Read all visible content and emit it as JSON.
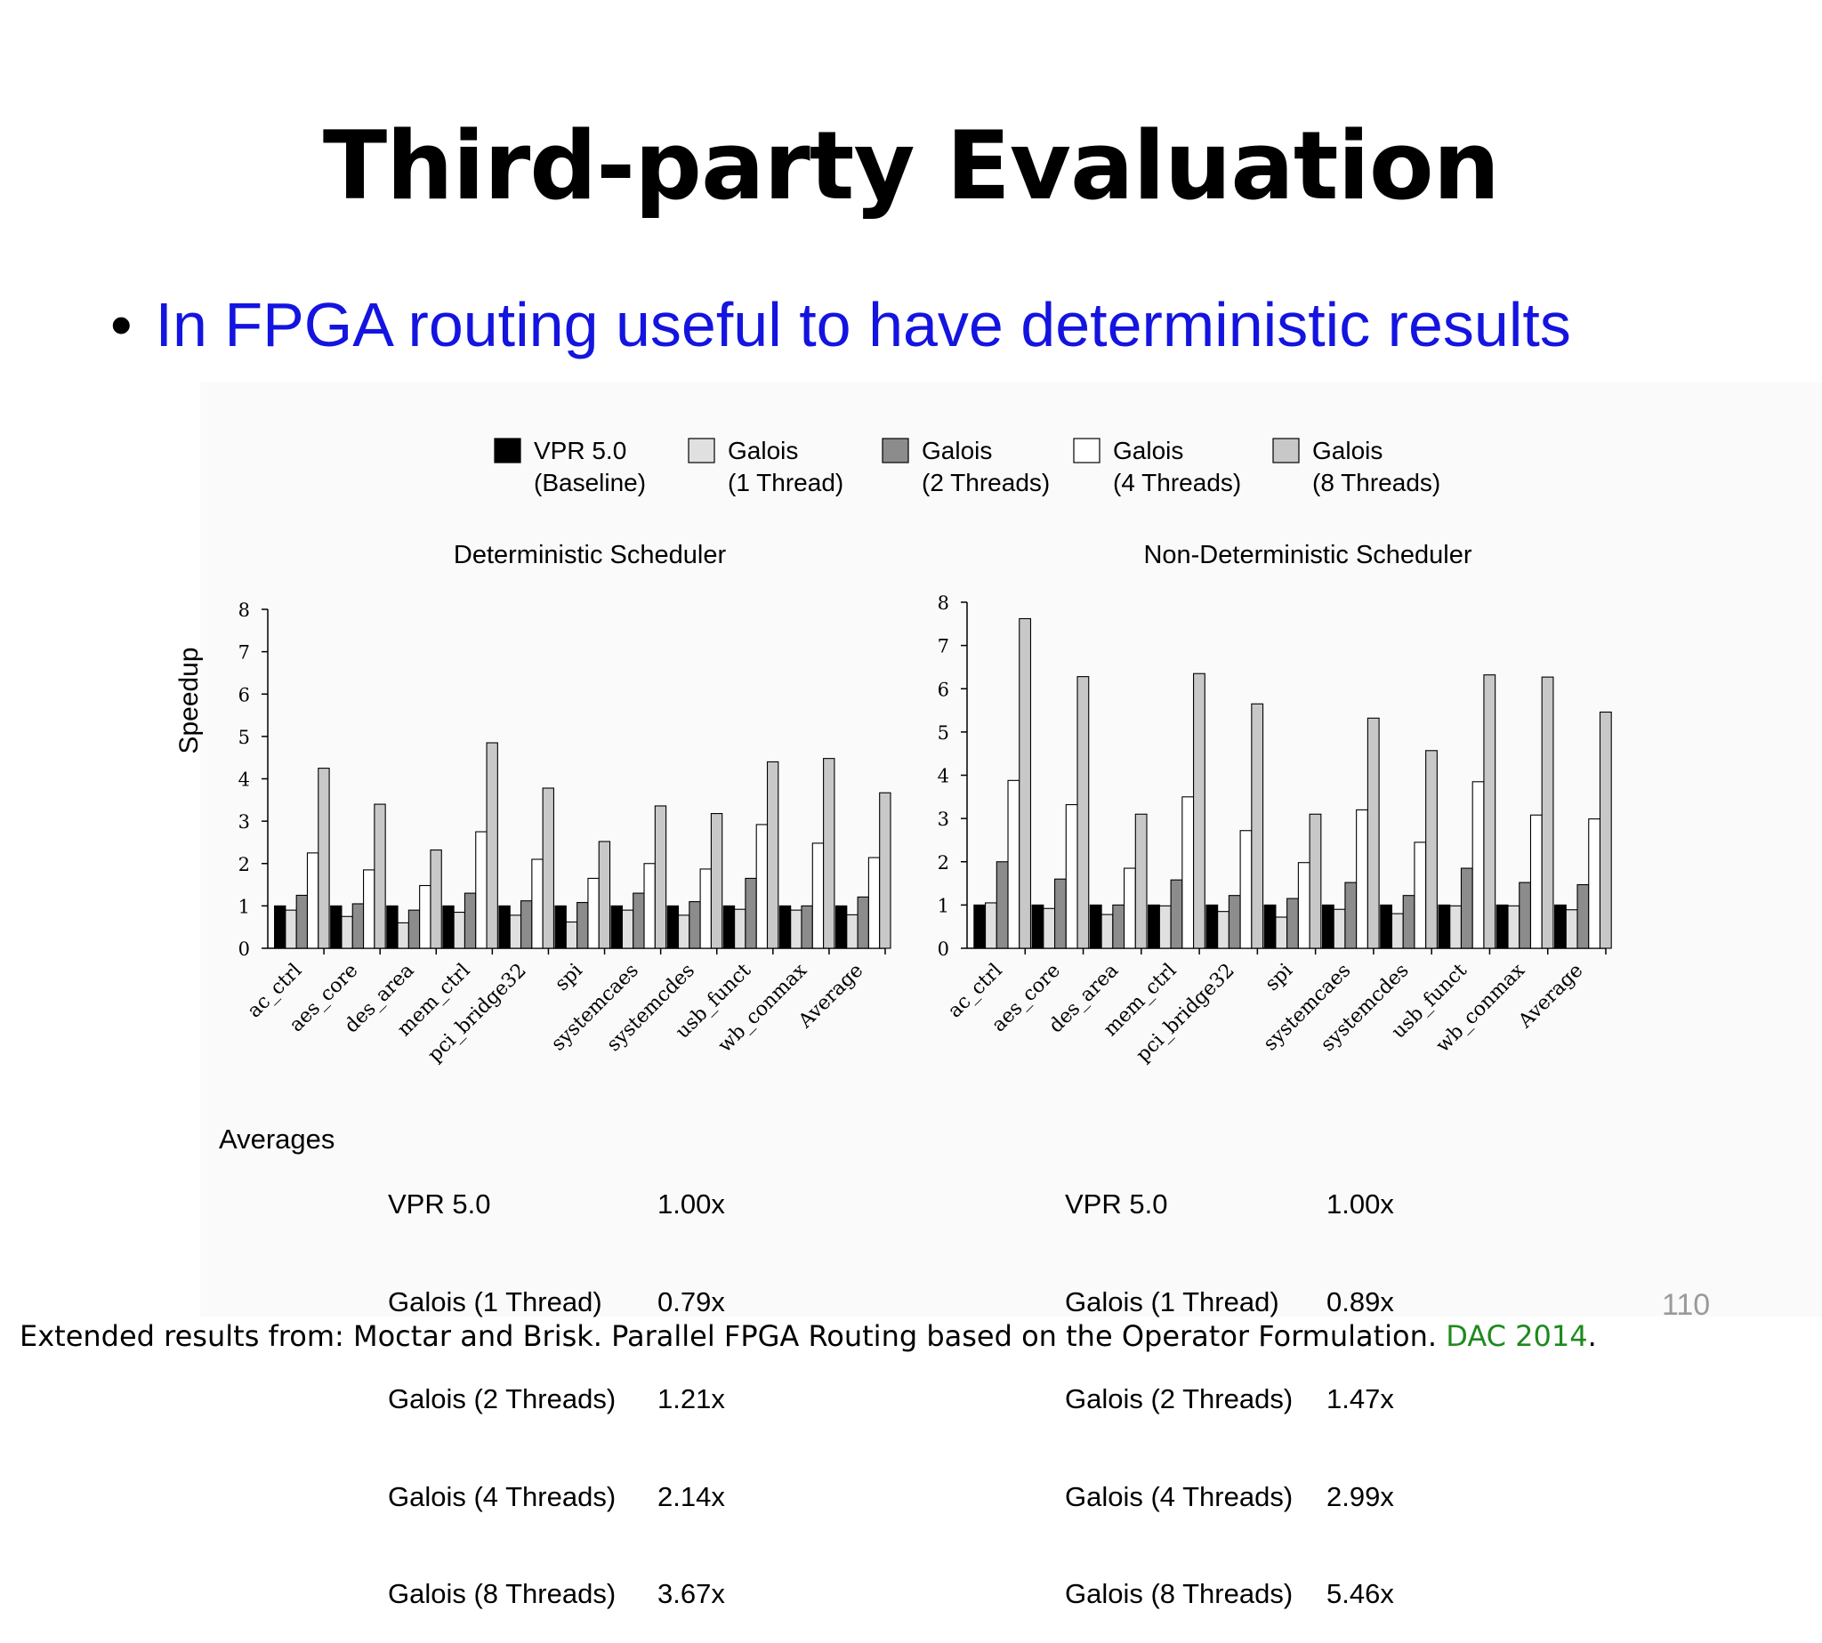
{
  "slide": {
    "title": "Third-party Evaluation",
    "bullet_symbol": "•",
    "bullet_text": "In FPGA routing useful to have deterministic results",
    "page_number": "110",
    "footer_text": "Extended results from: Moctar and Brisk. Parallel FPGA Routing based on the Operator Formulation.",
    "footer_venue": "DAC 2014",
    "footer_end": "."
  },
  "legend": [
    {
      "line1": "VPR 5.0",
      "line2": "(Baseline)",
      "color": "#000000"
    },
    {
      "line1": "Galois",
      "line2": "(1 Thread)",
      "color": "#e0e0e0"
    },
    {
      "line1": "Galois",
      "line2": "(2 Threads)",
      "color": "#8c8c8c"
    },
    {
      "line1": "Galois",
      "line2": "(4 Threads)",
      "color": "#ffffff"
    },
    {
      "line1": "Galois",
      "line2": "(8 Threads)",
      "color": "#c8c8c8"
    }
  ],
  "chart_data": [
    {
      "type": "bar",
      "title": "Deterministic Scheduler",
      "ylabel": "Speedup",
      "ylim": [
        0,
        8
      ],
      "yticks": [
        "0",
        "1",
        "2",
        "3",
        "4",
        "5",
        "6",
        "7",
        "8"
      ],
      "categories": [
        "ac_ctrl",
        "aes_core",
        "des_area",
        "mem_ctrl",
        "pci_bridge32",
        "spi",
        "systemcaes",
        "systemcdes",
        "usb_funct",
        "wb_conmax",
        "Average"
      ],
      "series": [
        {
          "name": "VPR 5.0 (Baseline)",
          "values": [
            1.0,
            1.0,
            1.0,
            1.0,
            1.0,
            1.0,
            1.0,
            1.0,
            1.0,
            1.0,
            1.0
          ]
        },
        {
          "name": "Galois (1 Thread)",
          "values": [
            0.9,
            0.75,
            0.6,
            0.85,
            0.78,
            0.62,
            0.9,
            0.78,
            0.92,
            0.9,
            0.79
          ]
        },
        {
          "name": "Galois (2 Threads)",
          "values": [
            1.25,
            1.05,
            0.9,
            1.3,
            1.12,
            1.08,
            1.3,
            1.1,
            1.65,
            1.0,
            1.21
          ]
        },
        {
          "name": "Galois (4 Threads)",
          "values": [
            2.25,
            1.85,
            1.48,
            2.75,
            2.1,
            1.65,
            2.0,
            1.87,
            2.92,
            2.48,
            2.14
          ]
        },
        {
          "name": "Galois (8 Threads)",
          "values": [
            4.25,
            3.4,
            2.32,
            4.85,
            3.78,
            2.52,
            3.36,
            3.18,
            4.4,
            4.48,
            3.67
          ]
        }
      ],
      "averages": [
        {
          "label": "Averages",
          "name": "VPR 5.0",
          "value": "1.00x"
        },
        {
          "label": "",
          "name": "Galois (1 Thread)",
          "value": "0.79x"
        },
        {
          "label": "",
          "name": "Galois (2 Threads)",
          "value": "1.21x"
        },
        {
          "label": "",
          "name": "Galois (4 Threads)",
          "value": "2.14x"
        },
        {
          "label": "",
          "name": "Galois (8 Threads)",
          "value": "3.67x"
        }
      ]
    },
    {
      "type": "bar",
      "title": "Non-Deterministic Scheduler",
      "ylabel": "",
      "ylim": [
        0,
        8
      ],
      "yticks": [
        "0",
        "1",
        "2",
        "3",
        "4",
        "5",
        "6",
        "7",
        "8"
      ],
      "categories": [
        "ac_ctrl",
        "aes_core",
        "des_area",
        "mem_ctrl",
        "pci_bridge32",
        "spi",
        "systemcaes",
        "systemcdes",
        "usb_funct",
        "wb_conmax",
        "Average"
      ],
      "series": [
        {
          "name": "VPR 5.0 (Baseline)",
          "values": [
            1.0,
            1.0,
            1.0,
            1.0,
            1.0,
            1.0,
            1.0,
            1.0,
            1.0,
            1.0,
            1.0
          ]
        },
        {
          "name": "Galois (1 Thread)",
          "values": [
            1.05,
            0.92,
            0.78,
            0.98,
            0.85,
            0.72,
            0.9,
            0.8,
            0.98,
            0.98,
            0.89
          ]
        },
        {
          "name": "Galois (2 Threads)",
          "values": [
            2.0,
            1.6,
            1.0,
            1.58,
            1.22,
            1.15,
            1.52,
            1.22,
            1.85,
            1.52,
            1.47
          ]
        },
        {
          "name": "Galois (4 Threads)",
          "values": [
            3.88,
            3.32,
            1.85,
            3.5,
            2.72,
            1.98,
            3.2,
            2.45,
            3.85,
            3.08,
            2.99
          ]
        },
        {
          "name": "Galois (8 Threads)",
          "values": [
            7.62,
            6.28,
            3.1,
            6.35,
            5.65,
            3.1,
            5.32,
            4.57,
            6.32,
            6.27,
            5.46
          ]
        }
      ],
      "averages": [
        {
          "label": "",
          "name": "VPR 5.0",
          "value": "1.00x"
        },
        {
          "label": "",
          "name": "Galois (1 Thread)",
          "value": "0.89x"
        },
        {
          "label": "",
          "name": "Galois (2 Threads)",
          "value": "1.47x"
        },
        {
          "label": "",
          "name": "Galois (4 Threads)",
          "value": "2.99x"
        },
        {
          "label": "",
          "name": "Galois (8 Threads)",
          "value": "5.46x"
        }
      ]
    }
  ]
}
